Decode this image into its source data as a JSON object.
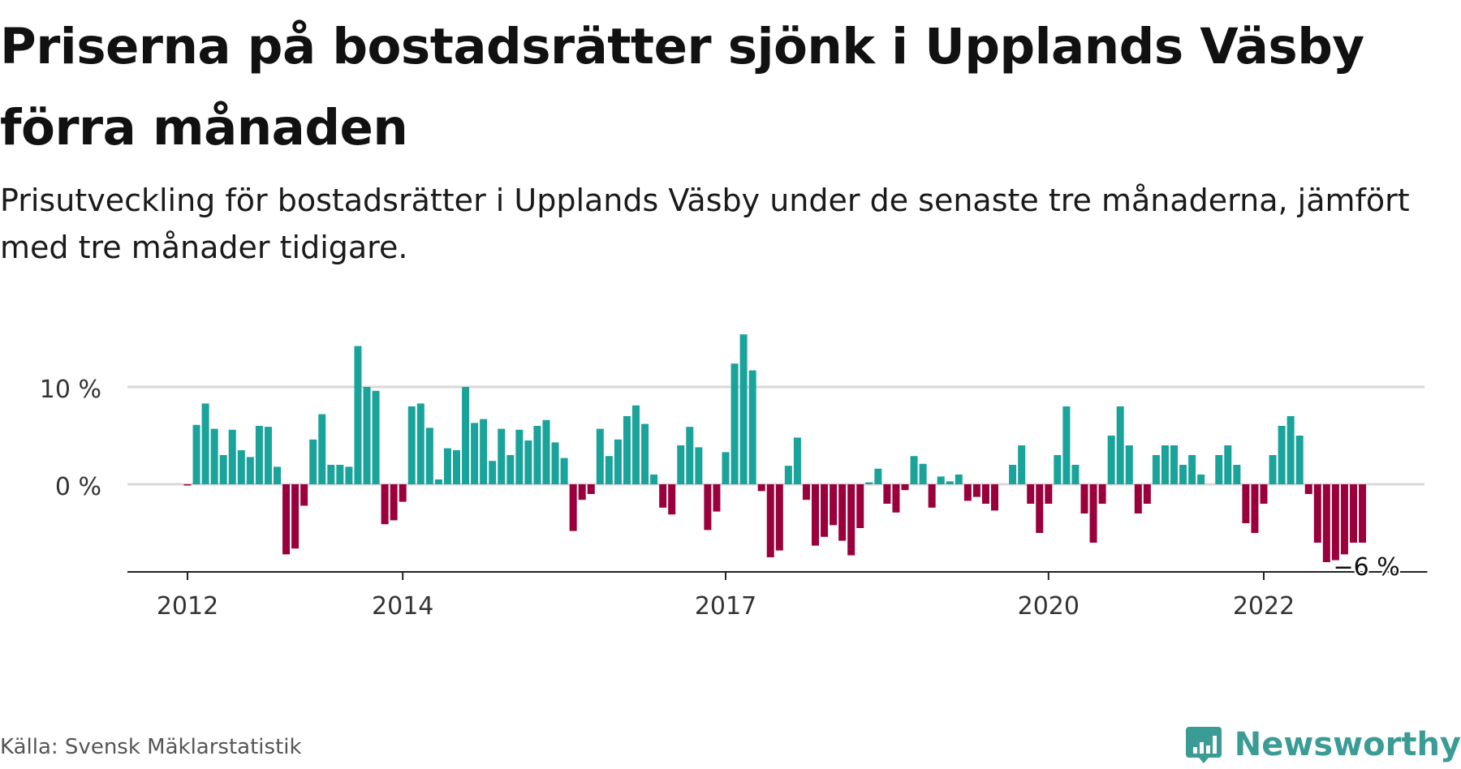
{
  "header": {
    "title": "Priserna på bostadsrätter sjönk i Upplands Väsby förra månaden",
    "subtitle": "Prisutveckling för bostadsrätter i Upplands Väsby under de senaste tre månaderna, jämfört med tre månader tidigare."
  },
  "footer": {
    "source": "Källa: Svensk Mäklarstatistik",
    "brand": "Newsworthy",
    "brand_icon": "bar-chart-logo-icon"
  },
  "colors": {
    "positive": "#1aa39a",
    "negative": "#99003c",
    "grid": "#d9d9d9",
    "axis": "#222222",
    "brand": "#3a9c95"
  },
  "chart_data": {
    "type": "bar",
    "title": "",
    "xlabel": "",
    "ylabel": "",
    "ylim": [
      -9,
      15
    ],
    "yticks": [
      0,
      10
    ],
    "ytick_labels": [
      "0 %",
      "10 %"
    ],
    "xticks": [
      "2012",
      "2014",
      "2017",
      "2020",
      "2022"
    ],
    "grid": true,
    "last_value_label": "−6 %",
    "series": [
      {
        "x": [
          "2012-01",
          "2012-02",
          "2012-03",
          "2012-04",
          "2012-05",
          "2012-06",
          "2012-07",
          "2012-08",
          "2012-09",
          "2012-10",
          "2012-11",
          "2012-12",
          "2013-01",
          "2013-02",
          "2013-03",
          "2013-04",
          "2013-05",
          "2013-06",
          "2013-07",
          "2013-08",
          "2013-09",
          "2013-10",
          "2013-11",
          "2013-12",
          "2014-01",
          "2014-02",
          "2014-03",
          "2014-04",
          "2014-05",
          "2014-06",
          "2014-07",
          "2014-08",
          "2014-09",
          "2014-10",
          "2014-11",
          "2014-12",
          "2015-01",
          "2015-02",
          "2015-03",
          "2015-04",
          "2015-05",
          "2015-06",
          "2015-07",
          "2015-08",
          "2015-09",
          "2015-10",
          "2015-11",
          "2015-12",
          "2016-01",
          "2016-02",
          "2016-03",
          "2016-04",
          "2016-05",
          "2016-06",
          "2016-07",
          "2016-08",
          "2016-09",
          "2016-10",
          "2016-11",
          "2016-12",
          "2017-01",
          "2017-02",
          "2017-03",
          "2017-04",
          "2017-05",
          "2017-06",
          "2017-07",
          "2017-08",
          "2017-09",
          "2017-10",
          "2017-11",
          "2017-12",
          "2018-01",
          "2018-02",
          "2018-03",
          "2018-04",
          "2018-05",
          "2018-06",
          "2018-07",
          "2018-08",
          "2018-09",
          "2018-10",
          "2018-11",
          "2018-12",
          "2019-01",
          "2019-02",
          "2019-03",
          "2019-04",
          "2019-05",
          "2019-06",
          "2019-07",
          "2019-08",
          "2019-09",
          "2019-10",
          "2019-11",
          "2019-12",
          "2020-01",
          "2020-02",
          "2020-03",
          "2020-04",
          "2020-05",
          "2020-06",
          "2020-07",
          "2020-08",
          "2020-09",
          "2020-10",
          "2020-11",
          "2020-12",
          "2021-01",
          "2021-02",
          "2021-03",
          "2021-04",
          "2021-05",
          "2021-06",
          "2021-07",
          "2021-08",
          "2021-09",
          "2021-10",
          "2021-11",
          "2021-12",
          "2022-01",
          "2022-02",
          "2022-03",
          "2022-04",
          "2022-05",
          "2022-06",
          "2022-07",
          "2022-08",
          "2022-09",
          "2022-10",
          "2022-11",
          "2022-12"
        ],
        "values": [
          -0.1,
          6.1,
          8.3,
          5.7,
          3.0,
          5.6,
          3.5,
          2.8,
          6.0,
          5.9,
          1.8,
          -7.2,
          -6.6,
          -2.2,
          4.6,
          7.2,
          2.0,
          2.0,
          1.8,
          14.2,
          10.0,
          9.6,
          -4.1,
          -3.7,
          -1.8,
          8.0,
          8.3,
          5.8,
          0.5,
          3.7,
          3.5,
          10.0,
          6.3,
          6.7,
          2.4,
          5.7,
          3.0,
          5.6,
          4.5,
          6.0,
          6.6,
          4.3,
          2.7,
          -4.8,
          -1.6,
          -1.0,
          5.7,
          2.9,
          4.6,
          7.0,
          8.1,
          6.2,
          1.0,
          -2.4,
          -3.1,
          4.0,
          5.9,
          3.8,
          -4.7,
          -2.8,
          3.3,
          12.4,
          15.4,
          11.7,
          -0.7,
          -7.5,
          -6.8,
          1.9,
          4.8,
          -1.6,
          -6.3,
          -5.4,
          -4.2,
          -5.8,
          -7.3,
          -4.5,
          0.2,
          1.6,
          -2.0,
          -2.9,
          -0.6,
          2.9,
          2.1,
          -2.4,
          0.8,
          0.3,
          1.0,
          -1.7,
          -1.3,
          -2.0,
          -2.7,
          0.0,
          2.0,
          4.0,
          -2.0,
          -5.0,
          -2.0,
          3.0,
          8.0,
          2.0,
          -3.0,
          -6.0,
          -2.0,
          5.0,
          8.0,
          4.0,
          -3.0,
          -2.0,
          3.0,
          4.0,
          4.0,
          2.0,
          3.0,
          1.0,
          0.0,
          3.0,
          4.0,
          2.0,
          -4.0,
          -5.0,
          -2.0,
          3.0,
          6.0,
          7.0,
          5.0,
          -1.0,
          -6.0,
          -8.0,
          -7.8,
          -7.2,
          -6.0,
          -6.0
        ]
      }
    ]
  }
}
